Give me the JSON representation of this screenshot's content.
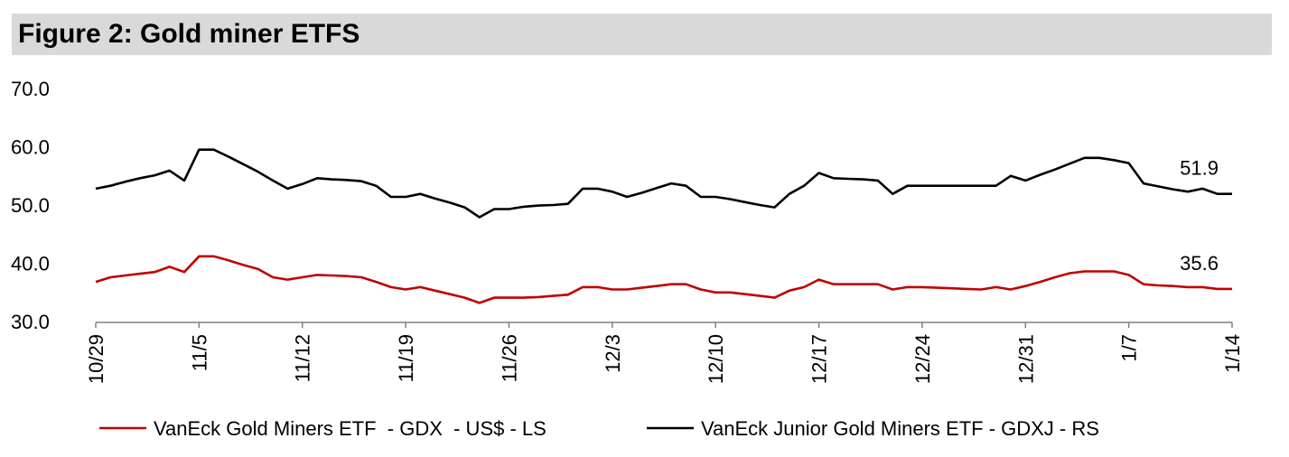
{
  "figure_title": "Figure 2: Gold miner ETFS",
  "chart_data": {
    "type": "line",
    "title": "Figure 2: Gold miner ETFS",
    "ylim": [
      30,
      70
    ],
    "yticks": [
      "70.0",
      "60.0",
      "50.0",
      "40.0",
      "30.0"
    ],
    "ytick_values": [
      70,
      60,
      50,
      40,
      30
    ],
    "x_tick_labels": [
      "10/29",
      "11/5",
      "11/12",
      "11/19",
      "11/26",
      "12/3",
      "12/10",
      "12/17",
      "12/24",
      "12/31",
      "1/7",
      "1/14"
    ],
    "x_tick_day_index": [
      0,
      7,
      14,
      21,
      28,
      35,
      42,
      49,
      56,
      63,
      70,
      77
    ],
    "grid": false,
    "legend_position": "bottom",
    "series": [
      {
        "name": "VanEck Gold Miners ETF  - GDX  - US$ - LS",
        "color": "#c00000",
        "end_label": "35.6",
        "x": [
          0,
          1,
          2,
          3,
          4,
          5,
          6,
          7,
          8,
          9,
          10,
          11,
          12,
          13,
          14,
          15,
          16,
          17,
          18,
          19,
          20,
          21,
          22,
          23,
          24,
          25,
          26,
          27,
          28,
          29,
          30,
          31,
          32,
          33,
          34,
          35,
          36,
          37,
          38,
          39,
          40,
          41,
          42,
          43,
          44,
          45,
          46,
          47,
          48,
          49,
          50,
          51,
          52,
          53,
          54,
          55,
          56,
          57,
          58,
          59,
          60,
          61,
          62,
          63,
          64,
          65,
          66,
          67,
          68,
          69,
          70,
          71,
          72,
          73,
          74,
          75,
          76,
          77
        ],
        "values": [
          36.8,
          37.6,
          37.9,
          38.2,
          38.5,
          39.4,
          38.5,
          41.2,
          41.2,
          40.5,
          39.7,
          39.0,
          37.6,
          37.2,
          37.6,
          38.0,
          37.9,
          37.8,
          37.6,
          36.8,
          35.9,
          35.5,
          35.9,
          35.3,
          34.7,
          34.1,
          33.2,
          34.1,
          34.1,
          34.1,
          34.2,
          34.4,
          34.6,
          35.9,
          35.9,
          35.5,
          35.5,
          35.8,
          36.1,
          36.4,
          36.4,
          35.5,
          35.0,
          35.0,
          34.7,
          34.4,
          34.1,
          35.3,
          35.9,
          37.2,
          36.4,
          36.4,
          36.4,
          36.4,
          35.5,
          35.9,
          35.9,
          35.8,
          35.7,
          35.6,
          35.5,
          35.9,
          35.5,
          36.1,
          36.8,
          37.6,
          38.3,
          38.6,
          38.6,
          38.6,
          38.0,
          36.4,
          36.2,
          36.1,
          35.9,
          35.9,
          35.6,
          35.6
        ]
      },
      {
        "name": "VanEck Junior Gold Miners ETF - GDXJ - RS",
        "color": "#000000",
        "end_label": "51.9",
        "x": [
          0,
          1,
          2,
          3,
          4,
          5,
          6,
          7,
          8,
          9,
          10,
          11,
          12,
          13,
          14,
          15,
          16,
          17,
          18,
          19,
          20,
          21,
          22,
          23,
          24,
          25,
          26,
          27,
          28,
          29,
          30,
          31,
          32,
          33,
          34,
          35,
          36,
          37,
          38,
          39,
          40,
          41,
          42,
          43,
          44,
          45,
          46,
          47,
          48,
          49,
          50,
          51,
          52,
          53,
          54,
          55,
          56,
          57,
          58,
          59,
          60,
          61,
          62,
          63,
          64,
          65,
          66,
          67,
          68,
          69,
          70,
          71,
          72,
          73,
          74,
          75,
          76,
          77
        ],
        "values": [
          52.8,
          53.3,
          54.0,
          54.6,
          55.1,
          55.9,
          54.2,
          59.5,
          59.5,
          58.3,
          57.0,
          55.7,
          54.2,
          52.8,
          53.6,
          54.6,
          54.4,
          54.3,
          54.1,
          53.3,
          51.4,
          51.4,
          51.9,
          51.1,
          50.4,
          49.6,
          47.9,
          49.3,
          49.3,
          49.7,
          49.9,
          50.0,
          50.2,
          52.8,
          52.8,
          52.3,
          51.4,
          52.1,
          52.9,
          53.7,
          53.3,
          51.4,
          51.4,
          51.0,
          50.5,
          50.0,
          49.6,
          51.9,
          53.3,
          55.5,
          54.6,
          54.5,
          54.4,
          54.2,
          51.9,
          53.3,
          53.3,
          53.3,
          53.3,
          53.3,
          53.3,
          53.3,
          55.0,
          54.2,
          55.2,
          56.1,
          57.1,
          58.1,
          58.1,
          57.7,
          57.2,
          53.7,
          53.2,
          52.7,
          52.3,
          52.8,
          51.9,
          51.9
        ]
      }
    ]
  }
}
